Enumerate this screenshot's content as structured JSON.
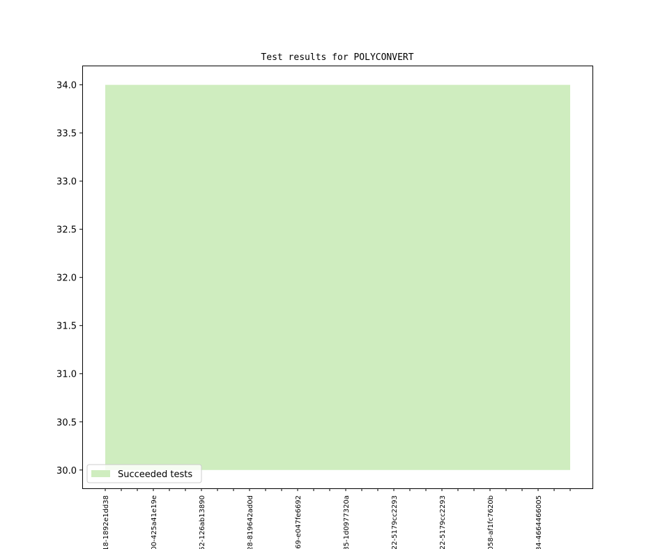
{
  "chart_data": {
    "type": "area",
    "title": "Test results for POLYCONVERT",
    "categories": [
      "18-1892e1dd38",
      null,
      null,
      "00-425a41e19e",
      null,
      null,
      "52-126ab13890",
      null,
      null,
      "28-819642ad0d",
      null,
      null,
      "69-e047fe6692",
      null,
      null,
      "85-1d0977320a",
      null,
      null,
      "22-5179cc2293",
      null,
      null,
      "22-5179cc2293",
      null,
      null,
      "058-af1fc7620b",
      null,
      null,
      "84-4664466005",
      null,
      null
    ],
    "series": [
      {
        "name": "Succeeded tests",
        "color": "#cfedbf",
        "values": [
          34,
          34,
          34,
          34,
          34,
          34,
          34,
          34,
          34,
          34,
          34,
          34,
          34,
          34,
          34,
          34,
          34,
          34,
          34,
          34,
          34,
          34,
          34,
          34,
          34,
          34,
          34,
          34,
          34,
          34
        ]
      }
    ],
    "baseline": 30,
    "ylim": [
      29.81,
      34.2
    ],
    "yticks": [
      {
        "value": 30,
        "label": "30.0"
      },
      {
        "value": 30.5,
        "label": "30.5"
      },
      {
        "value": 31,
        "label": "31.0"
      },
      {
        "value": 31.5,
        "label": "31.5"
      },
      {
        "value": 32,
        "label": "32.0"
      },
      {
        "value": 32.5,
        "label": "32.5"
      },
      {
        "value": 33,
        "label": "33.0"
      },
      {
        "value": 33.5,
        "label": "33.5"
      },
      {
        "value": 34,
        "label": "34.0"
      }
    ],
    "legend": "lower left"
  }
}
